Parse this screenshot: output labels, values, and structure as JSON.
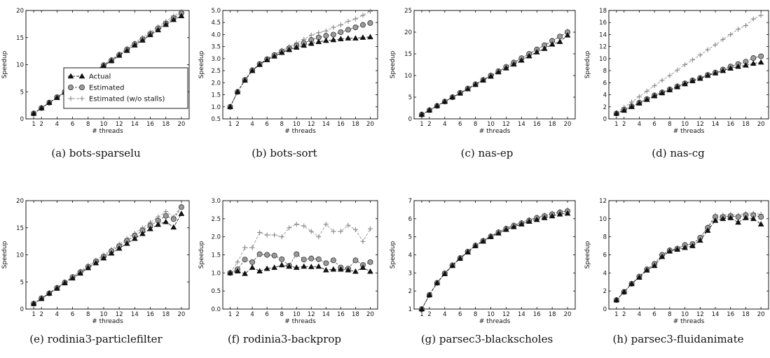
{
  "chart_data": [
    {
      "type": "line",
      "caption": "(a) bots-sparselu",
      "xlabel": "# threads",
      "ylabel": "Speedup",
      "xlim": [
        0,
        21
      ],
      "ylim": [
        0,
        20
      ],
      "xticks": [
        1,
        2,
        4,
        6,
        8,
        10,
        12,
        14,
        16,
        18,
        20
      ],
      "yticks": [
        0,
        5,
        10,
        15,
        20
      ],
      "ytick_labels": [
        "0",
        "5",
        "10",
        "15",
        "20"
      ],
      "x": [
        1,
        2,
        3,
        4,
        5,
        6,
        7,
        8,
        9,
        10,
        11,
        12,
        13,
        14,
        15,
        16,
        17,
        18,
        19,
        20
      ],
      "series": [
        {
          "name": "Actual",
          "values": [
            1.0,
            2.0,
            3.0,
            3.9,
            4.9,
            5.9,
            6.9,
            7.8,
            8.8,
            9.8,
            10.7,
            11.7,
            12.6,
            13.6,
            14.5,
            15.5,
            16.4,
            17.4,
            18.3,
            19.0
          ]
        },
        {
          "name": "Estimated",
          "values": [
            1.0,
            2.0,
            3.0,
            4.0,
            5.0,
            5.9,
            6.9,
            7.9,
            8.9,
            9.9,
            10.8,
            11.8,
            12.8,
            13.8,
            14.7,
            15.7,
            16.7,
            17.6,
            18.6,
            19.5
          ]
        },
        {
          "name": "Estimated (w/o stalls)",
          "values": [
            1.0,
            2.0,
            3.0,
            4.0,
            5.0,
            6.0,
            7.0,
            8.0,
            9.0,
            10.0,
            11.0,
            12.0,
            13.0,
            14.0,
            15.0,
            16.0,
            17.0,
            18.0,
            19.0,
            19.8
          ]
        }
      ],
      "legend": {
        "placement": "inside-lower-right",
        "entries": [
          "Actual",
          "Estimated",
          "Estimated (w/o stalls)"
        ]
      }
    },
    {
      "type": "line",
      "caption": "(b) bots-sort",
      "xlabel": "# threads",
      "ylabel": "Speedup",
      "xlim": [
        0,
        21
      ],
      "ylim": [
        0.5,
        5.0
      ],
      "xticks": [
        1,
        2,
        4,
        6,
        8,
        10,
        12,
        14,
        16,
        18,
        20
      ],
      "yticks": [
        0.5,
        1.0,
        1.5,
        2.0,
        2.5,
        3.0,
        3.5,
        4.0,
        4.5,
        5.0
      ],
      "ytick_labels": [
        "0.5",
        "1.0",
        "1.5",
        "2.0",
        "2.5",
        "3.0",
        "3.5",
        "4.0",
        "4.5",
        "5.0"
      ],
      "x": [
        1,
        2,
        3,
        4,
        5,
        6,
        7,
        8,
        9,
        10,
        11,
        12,
        13,
        14,
        15,
        16,
        17,
        18,
        19,
        20
      ],
      "series": [
        {
          "name": "Actual",
          "values": [
            1.0,
            1.62,
            2.1,
            2.5,
            2.75,
            2.95,
            3.1,
            3.25,
            3.37,
            3.47,
            3.55,
            3.63,
            3.7,
            3.75,
            3.78,
            3.82,
            3.85,
            3.85,
            3.88,
            3.9
          ]
        },
        {
          "name": "Estimated",
          "values": [
            1.0,
            1.62,
            2.12,
            2.52,
            2.78,
            2.98,
            3.15,
            3.3,
            3.43,
            3.55,
            3.65,
            3.78,
            3.88,
            3.95,
            4.0,
            4.1,
            4.2,
            4.3,
            4.4,
            4.48
          ]
        },
        {
          "name": "Estimated (w/o stalls)",
          "values": [
            1.0,
            1.62,
            2.12,
            2.52,
            2.78,
            3.0,
            3.18,
            3.35,
            3.5,
            3.65,
            3.8,
            3.98,
            4.08,
            4.15,
            4.3,
            4.4,
            4.55,
            4.65,
            4.8,
            4.97
          ]
        }
      ]
    },
    {
      "type": "line",
      "caption": "(c) nas-ep",
      "xlabel": "# threads",
      "ylabel": "Speedup",
      "xlim": [
        0,
        21
      ],
      "ylim": [
        0,
        25
      ],
      "xticks": [
        1,
        2,
        4,
        6,
        8,
        10,
        12,
        14,
        16,
        18,
        20
      ],
      "yticks": [
        0,
        5,
        10,
        15,
        20,
        25
      ],
      "ytick_labels": [
        "0",
        "5",
        "10",
        "15",
        "20",
        "25"
      ],
      "x": [
        1,
        2,
        3,
        4,
        5,
        6,
        7,
        8,
        9,
        10,
        11,
        12,
        13,
        14,
        15,
        16,
        17,
        18,
        19,
        20
      ],
      "series": [
        {
          "name": "Actual",
          "values": [
            1.0,
            2.0,
            3.0,
            4.0,
            5.0,
            5.9,
            6.9,
            7.9,
            8.9,
            9.8,
            10.8,
            11.7,
            12.6,
            13.5,
            14.5,
            15.4,
            16.2,
            17.2,
            17.8,
            19.3
          ]
        },
        {
          "name": "Estimated",
          "values": [
            1.0,
            2.0,
            3.0,
            4.0,
            5.0,
            6.0,
            7.0,
            8.0,
            9.0,
            10.0,
            11.0,
            12.0,
            13.0,
            14.0,
            15.0,
            16.0,
            17.0,
            18.0,
            19.0,
            20.0
          ]
        },
        {
          "name": "Estimated (w/o stalls)",
          "values": [
            1.0,
            2.0,
            3.0,
            4.0,
            5.0,
            6.0,
            7.0,
            8.0,
            9.0,
            10.0,
            11.0,
            12.0,
            13.0,
            14.0,
            15.0,
            16.0,
            17.0,
            18.0,
            19.0,
            20.2
          ]
        }
      ]
    },
    {
      "type": "line",
      "caption": "(d) nas-cg",
      "xlabel": "# threads",
      "ylabel": "Speedup",
      "xlim": [
        0,
        21
      ],
      "ylim": [
        0,
        18
      ],
      "xticks": [
        1,
        2,
        4,
        6,
        8,
        10,
        12,
        14,
        16,
        18,
        20
      ],
      "yticks": [
        0,
        2,
        4,
        6,
        8,
        10,
        12,
        14,
        16,
        18
      ],
      "ytick_labels": [
        "0",
        "2",
        "4",
        "6",
        "8",
        "10",
        "12",
        "14",
        "16",
        "18"
      ],
      "x": [
        1,
        2,
        3,
        4,
        5,
        6,
        7,
        8,
        9,
        10,
        11,
        12,
        13,
        14,
        15,
        16,
        17,
        18,
        19,
        20
      ],
      "series": [
        {
          "name": "Actual",
          "values": [
            0.9,
            1.4,
            2.0,
            2.6,
            3.2,
            3.8,
            4.3,
            4.8,
            5.3,
            5.8,
            6.3,
            6.7,
            7.2,
            7.6,
            8.0,
            8.4,
            8.7,
            8.9,
            9.2,
            9.4
          ]
        },
        {
          "name": "Estimated",
          "values": [
            0.9,
            1.5,
            2.1,
            2.7,
            3.3,
            3.9,
            4.4,
            4.9,
            5.4,
            5.9,
            6.4,
            6.8,
            7.3,
            7.7,
            8.2,
            8.7,
            9.1,
            9.5,
            10.1,
            10.4
          ]
        },
        {
          "name": "Estimated (w/o stalls)",
          "values": [
            1.0,
            1.9,
            2.8,
            3.7,
            4.6,
            5.5,
            6.4,
            7.2,
            8.1,
            9.0,
            9.8,
            10.6,
            11.5,
            12.3,
            13.2,
            14.0,
            14.9,
            15.5,
            16.6,
            17.2
          ]
        }
      ]
    },
    {
      "type": "line",
      "caption": "(e) rodinia3-particlefilter",
      "xlabel": "# threads",
      "ylabel": "Speedup",
      "xlim": [
        0,
        21
      ],
      "ylim": [
        0,
        20
      ],
      "xticks": [
        1,
        2,
        4,
        6,
        8,
        10,
        12,
        14,
        16,
        18,
        20
      ],
      "yticks": [
        0,
        5,
        10,
        15,
        20
      ],
      "ytick_labels": [
        "0",
        "5",
        "10",
        "15",
        "20"
      ],
      "x": [
        1,
        2,
        3,
        4,
        5,
        6,
        7,
        8,
        9,
        10,
        11,
        12,
        13,
        14,
        15,
        16,
        17,
        18,
        19,
        20
      ],
      "series": [
        {
          "name": "Actual",
          "values": [
            1.0,
            1.9,
            2.9,
            3.8,
            4.8,
            5.7,
            6.6,
            7.6,
            8.5,
            9.4,
            10.3,
            11.2,
            12.1,
            13.0,
            13.9,
            14.8,
            15.6,
            16.1,
            15.1,
            17.6
          ]
        },
        {
          "name": "Estimated",
          "values": [
            1.0,
            2.0,
            2.9,
            3.9,
            4.9,
            5.9,
            6.8,
            7.8,
            8.8,
            9.7,
            10.7,
            11.6,
            12.6,
            13.5,
            14.5,
            15.4,
            16.3,
            17.2,
            16.6,
            18.8
          ]
        },
        {
          "name": "Estimated (w/o stalls)",
          "values": [
            1.0,
            2.0,
            3.0,
            4.0,
            5.0,
            6.0,
            7.0,
            8.0,
            9.0,
            10.0,
            11.0,
            12.0,
            13.0,
            14.0,
            15.0,
            16.0,
            17.0,
            18.0,
            17.0,
            19.0
          ]
        }
      ]
    },
    {
      "type": "line",
      "caption": "(f) rodinia3-backprop",
      "xlabel": "# threads",
      "ylabel": "Speedup",
      "xlim": [
        0,
        21
      ],
      "ylim": [
        0.0,
        3.0
      ],
      "xticks": [
        1,
        2,
        4,
        6,
        8,
        10,
        12,
        14,
        16,
        18,
        20
      ],
      "yticks": [
        0.0,
        0.5,
        1.0,
        1.5,
        2.0,
        2.5,
        3.0
      ],
      "ytick_labels": [
        "0.0",
        "0.5",
        "1.0",
        "1.5",
        "2.0",
        "2.5",
        "3.0"
      ],
      "x": [
        1,
        2,
        3,
        4,
        5,
        6,
        7,
        8,
        9,
        10,
        11,
        12,
        13,
        14,
        15,
        16,
        17,
        18,
        19,
        20
      ],
      "series": [
        {
          "name": "Actual",
          "values": [
            1.0,
            1.05,
            0.98,
            1.15,
            1.05,
            1.12,
            1.15,
            1.22,
            1.18,
            1.15,
            1.18,
            1.17,
            1.18,
            1.08,
            1.1,
            1.1,
            1.08,
            1.04,
            1.15,
            1.04
          ]
        },
        {
          "name": "Estimated",
          "values": [
            1.0,
            1.1,
            1.37,
            1.3,
            1.52,
            1.5,
            1.48,
            1.38,
            1.2,
            1.52,
            1.37,
            1.4,
            1.38,
            1.27,
            1.35,
            1.15,
            1.12,
            1.35,
            1.22,
            1.3
          ]
        },
        {
          "name": "Estimated (w/o stalls)",
          "values": [
            1.0,
            1.3,
            1.7,
            1.7,
            2.12,
            2.05,
            2.05,
            2.0,
            2.25,
            2.35,
            2.3,
            2.15,
            2.0,
            2.35,
            2.15,
            2.15,
            2.32,
            2.2,
            1.87,
            2.22
          ]
        }
      ]
    },
    {
      "type": "line",
      "caption": "(g) parsec3-blackscholes",
      "xlabel": "# threads",
      "ylabel": "Speedup",
      "xlim": [
        0,
        21
      ],
      "ylim": [
        1,
        7
      ],
      "xticks": [
        1,
        2,
        4,
        6,
        8,
        10,
        12,
        14,
        16,
        18,
        20
      ],
      "yticks": [
        1,
        2,
        3,
        4,
        5,
        6,
        7
      ],
      "ytick_labels": [
        "1",
        "2",
        "3",
        "4",
        "5",
        "6",
        "7"
      ],
      "x": [
        1,
        2,
        3,
        4,
        5,
        6,
        7,
        8,
        9,
        10,
        11,
        12,
        13,
        14,
        15,
        16,
        17,
        18,
        19,
        20
      ],
      "series": [
        {
          "name": "Actual",
          "values": [
            1.0,
            1.78,
            2.45,
            2.95,
            3.4,
            3.8,
            4.15,
            4.5,
            4.75,
            5.0,
            5.2,
            5.4,
            5.55,
            5.7,
            5.85,
            5.95,
            6.05,
            6.15,
            6.25,
            6.3
          ]
        },
        {
          "name": "Estimated",
          "values": [
            1.0,
            1.78,
            2.45,
            2.98,
            3.42,
            3.82,
            4.18,
            4.52,
            4.78,
            5.02,
            5.25,
            5.45,
            5.62,
            5.75,
            5.9,
            6.05,
            6.15,
            6.25,
            6.35,
            6.42
          ]
        },
        {
          "name": "Estimated (w/o stalls)",
          "values": [
            1.0,
            1.8,
            2.47,
            3.0,
            3.45,
            3.85,
            4.2,
            4.55,
            4.8,
            5.05,
            5.28,
            5.48,
            5.65,
            5.8,
            5.95,
            6.08,
            6.2,
            6.3,
            6.4,
            6.5
          ]
        }
      ]
    },
    {
      "type": "line",
      "caption": "(h) parsec3-fluidanimate",
      "xlabel": "# threads",
      "ylabel": "Speedup",
      "xlim": [
        0,
        21
      ],
      "ylim": [
        0,
        12
      ],
      "xticks": [
        1,
        2,
        4,
        6,
        8,
        10,
        12,
        14,
        16,
        18,
        20
      ],
      "yticks": [
        0,
        2,
        4,
        6,
        8,
        10,
        12
      ],
      "ytick_labels": [
        "0",
        "2",
        "4",
        "6",
        "8",
        "10",
        "12"
      ],
      "x": [
        1,
        2,
        3,
        4,
        5,
        6,
        7,
        8,
        9,
        10,
        11,
        12,
        13,
        14,
        15,
        16,
        17,
        18,
        19,
        20
      ],
      "series": [
        {
          "name": "Actual",
          "values": [
            1.0,
            1.9,
            2.8,
            3.5,
            4.3,
            4.8,
            5.8,
            6.4,
            6.6,
            6.8,
            7.0,
            7.6,
            8.7,
            9.8,
            10.0,
            10.1,
            9.6,
            10.1,
            10.0,
            9.4
          ]
        },
        {
          "name": "Estimated",
          "values": [
            1.0,
            1.9,
            2.8,
            3.6,
            4.4,
            5.0,
            6.0,
            6.5,
            6.7,
            7.1,
            7.2,
            7.9,
            9.0,
            10.2,
            10.2,
            10.3,
            10.2,
            10.4,
            10.4,
            10.2
          ]
        },
        {
          "name": "Estimated (w/o stalls)",
          "values": [
            1.0,
            1.9,
            2.8,
            3.6,
            4.4,
            5.0,
            6.0,
            6.5,
            6.7,
            7.1,
            7.2,
            7.9,
            9.1,
            10.4,
            10.4,
            10.5,
            10.4,
            10.6,
            10.6,
            10.5
          ]
        }
      ]
    }
  ]
}
